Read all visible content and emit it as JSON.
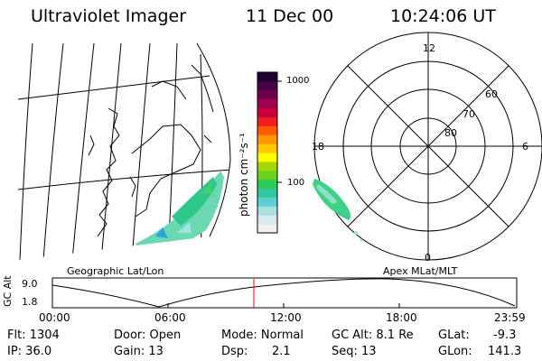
{
  "header": {
    "instrument": "Ultraviolet Imager",
    "date": "11 Dec 00",
    "time": "10:24:06 UT"
  },
  "colorbar": {
    "label": "photon cm⁻²s⁻¹",
    "ticks": [
      {
        "value": 1000,
        "label": "1000"
      },
      {
        "value": 100,
        "label": "100"
      }
    ],
    "range": [
      20,
      1300
    ],
    "scale": "log",
    "colors": [
      "#f0f0f0",
      "#d6ecec",
      "#a8e0e0",
      "#5ad0d0",
      "#30c8a0",
      "#2acd5a",
      "#6ed21c",
      "#a0d60a",
      "#ffff00",
      "#ffc800",
      "#ff9600",
      "#ff5a00",
      "#f01e1e",
      "#c8003c",
      "#a00050",
      "#70004c",
      "#4a0046",
      "#1e0032"
    ]
  },
  "left_panel": {
    "title": "Geographic Lat/Lon"
  },
  "right_panel": {
    "title": "Apex MLat/MLT",
    "mlt_labels": {
      "top": "12",
      "left": "18",
      "right": "6",
      "bottom": "0"
    },
    "lat_labels": [
      "60",
      "70",
      "80"
    ]
  },
  "altitude_plot": {
    "ylabel": "GC Alt",
    "y_ticks": [
      "9.0",
      "1.8"
    ],
    "x_ticks": [
      "00:00",
      "06:00",
      "12:00",
      "18:00",
      "23:59"
    ],
    "current_marker": "10:24"
  },
  "info": {
    "row1": {
      "flt": "Flt: 1304",
      "door": "Door: Open",
      "mode": "Mode: Normal",
      "gcalt": "GC Alt: 8.1 Re",
      "glat_label": "GLat:",
      "glat_value": "-9.3"
    },
    "row2": {
      "ip": "IP: 36.0",
      "gain": "Gain: 13",
      "dsp_label": "Dsp:",
      "dsp_value": "2.1",
      "seq": "Seq: 13",
      "glon_label": "GLon:",
      "glon_value": "141.3"
    }
  }
}
